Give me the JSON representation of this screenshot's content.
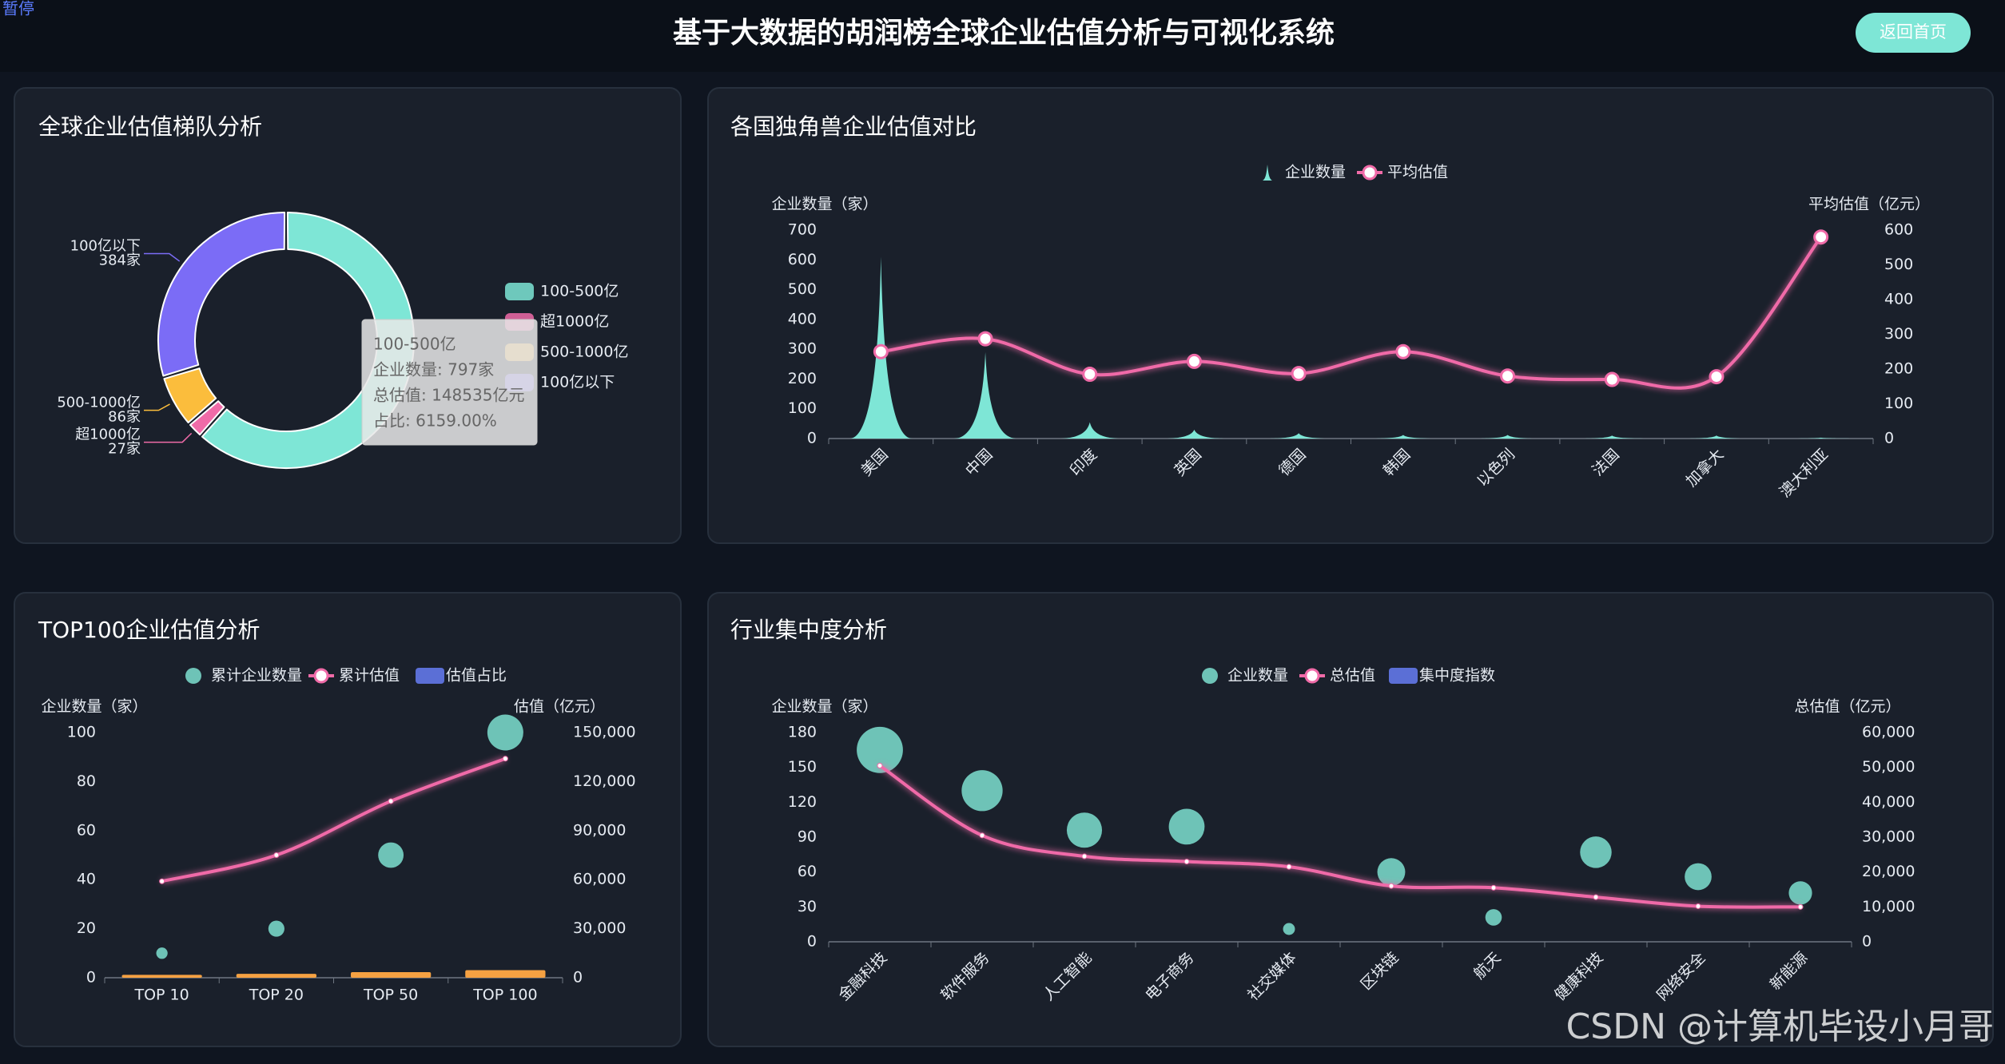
{
  "header": {
    "title": "基于大数据的胡润榜全球企业估值分析与可视化系统",
    "button": "返回首页",
    "pause": "暂停",
    "watermark": "CSDN @计算机毕设小月哥"
  },
  "chart_data": [
    {
      "type": "pie",
      "title": "全球企业估值梯队分析",
      "categories": [
        "100-500亿",
        "超1000亿",
        "500-1000亿",
        "100亿以下"
      ],
      "values": [
        797,
        27,
        86,
        384
      ],
      "value_labels": [
        null,
        "27家",
        "86家",
        "384家"
      ],
      "colors": [
        "#7ee6d6",
        "#f06ba8",
        "#fbbd3c",
        "#7b6cf6"
      ],
      "tooltip": [
        "100-500亿",
        "企业数量: 797家",
        "总估值: 148535亿元",
        "占比: 6159.00%"
      ]
    },
    {
      "type": "combo",
      "title": "各国独角兽企业估值对比",
      "ylabel": "企业数量（家）",
      "y2label": "平均估值（亿元）",
      "categories": [
        "美国",
        "中国",
        "印度",
        "英国",
        "德国",
        "韩国",
        "以色列",
        "法国",
        "加拿大",
        "澳大利亚"
      ],
      "series": [
        {
          "name": "企业数量",
          "type": "pictorialBar",
          "color": "#7ee6d6",
          "values": [
            610,
            290,
            55,
            30,
            18,
            12,
            12,
            10,
            10,
            3
          ]
        },
        {
          "name": "平均估值",
          "type": "line",
          "axis": "y2",
          "color": "#f06ba8",
          "values": [
            250,
            287,
            185,
            222,
            187,
            250,
            180,
            170,
            178,
            580
          ]
        }
      ],
      "ylim": [
        0,
        700
      ],
      "yticks": [
        0,
        100,
        200,
        300,
        400,
        500,
        600,
        700
      ],
      "y2lim": [
        0,
        600
      ],
      "y2ticks": [
        0,
        100,
        200,
        300,
        400,
        500,
        600
      ],
      "grid": false
    },
    {
      "type": "combo",
      "title": "TOP100企业估值分析",
      "ylabel": "企业数量（家）",
      "y2label": "估值（亿元）",
      "categories": [
        "TOP 10",
        "TOP 20",
        "TOP 50",
        "TOP 100"
      ],
      "series": [
        {
          "name": "累计企业数量",
          "type": "scatter",
          "color": "#7ee0d0",
          "values": [
            10,
            20,
            50,
            100
          ]
        },
        {
          "name": "累计估值",
          "type": "line",
          "axis": "y2",
          "color": "#f06ba8",
          "values": [
            59000,
            75000,
            108000,
            134000
          ]
        },
        {
          "name": "估值占比",
          "type": "bar",
          "color": "#f5a142",
          "legend_color": "#5b6fd6",
          "values": [
            1.2,
            1.6,
            2.3,
            3.1
          ]
        }
      ],
      "ylim": [
        0,
        100
      ],
      "yticks": [
        0,
        20,
        40,
        60,
        80,
        100
      ],
      "y2lim": [
        0,
        150000
      ],
      "y2ticks": [
        0,
        {
          "value": 30000,
          "label": "30,000"
        },
        {
          "value": 60000,
          "label": "60,000"
        },
        {
          "value": 90000,
          "label": "90,000"
        },
        {
          "value": 120000,
          "label": "120,000"
        },
        {
          "value": 150000,
          "label": "150,000"
        }
      ],
      "grid": false
    },
    {
      "type": "combo",
      "title": "行业集中度分析",
      "ylabel": "企业数量（家）",
      "y2label": "总估值（亿元）",
      "categories": [
        "金融科技",
        "软件服务",
        "人工智能",
        "电子商务",
        "社交媒体",
        "区块链",
        "航天",
        "健康科技",
        "网络安全",
        "新能源"
      ],
      "series": [
        {
          "name": "企业数量",
          "type": "scatter",
          "color": "#7ee0d0",
          "values": [
            165,
            130,
            96,
            99,
            11,
            60,
            21,
            77,
            56,
            42
          ]
        },
        {
          "name": "总估值",
          "type": "line",
          "axis": "y2",
          "color": "#f06ba8",
          "values": [
            50500,
            30500,
            24500,
            23000,
            21500,
            16000,
            15500,
            12800,
            10200,
            10000
          ]
        },
        {
          "name": "集中度指数",
          "type": "bar",
          "color": "#5b6fd6",
          "values": [
            null,
            null,
            null,
            null,
            null,
            null,
            null,
            null,
            null,
            null
          ]
        }
      ],
      "ylim": [
        0,
        180
      ],
      "yticks": [
        0,
        30,
        60,
        90,
        120,
        150,
        180
      ],
      "y2lim": [
        0,
        60000
      ],
      "y2ticks": [
        0,
        {
          "value": 10000,
          "label": "10,000"
        },
        {
          "value": 20000,
          "label": "20,000"
        },
        {
          "value": 30000,
          "label": "30,000"
        },
        {
          "value": 40000,
          "label": "40,000"
        },
        {
          "value": 50000,
          "label": "50,000"
        },
        {
          "value": 60000,
          "label": "60,000"
        }
      ],
      "grid": false
    }
  ]
}
